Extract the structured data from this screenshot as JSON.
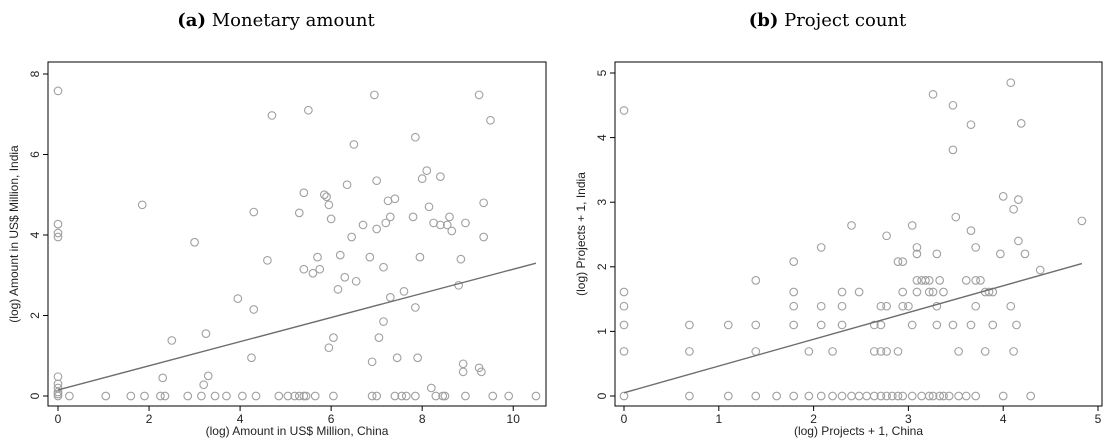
{
  "chart_data": [
    {
      "type": "scatter",
      "panel_label": "(a)",
      "title": "Monetary amount",
      "xlabel": "(log) Amount in US$ Million, China",
      "ylabel": "(log) Amount in US$ Million, India",
      "xlim": [
        0,
        10.5
      ],
      "ylim": [
        0,
        8
      ],
      "xticks": [
        0,
        2,
        4,
        6,
        8,
        10
      ],
      "yticks": [
        0,
        2,
        4,
        6,
        8
      ],
      "grid": false,
      "point_color": "#a0a0a0",
      "line_color": "#6e6e6e",
      "fit_line": {
        "x": [
          0,
          10.5
        ],
        "y": [
          0.15,
          3.3
        ]
      },
      "points": [
        [
          0,
          7.58
        ],
        [
          0,
          4.27
        ],
        [
          0,
          4.05
        ],
        [
          0,
          3.95
        ],
        [
          0,
          0.48
        ],
        [
          0,
          0.3
        ],
        [
          0,
          0.2
        ],
        [
          0,
          0.1
        ],
        [
          0,
          0.05
        ],
        [
          0,
          0
        ],
        [
          0.25,
          0
        ],
        [
          1.05,
          0
        ],
        [
          1.6,
          0
        ],
        [
          1.9,
          0
        ],
        [
          2.3,
          0.45
        ],
        [
          2.25,
          0
        ],
        [
          2.5,
          1.38
        ],
        [
          2.35,
          0
        ],
        [
          2.85,
          0
        ],
        [
          1.85,
          4.75
        ],
        [
          3.0,
          3.82
        ],
        [
          3.2,
          0.28
        ],
        [
          3.3,
          0.5
        ],
        [
          3.25,
          1.55
        ],
        [
          3.15,
          0
        ],
        [
          3.45,
          0
        ],
        [
          3.7,
          0
        ],
        [
          3.95,
          2.42
        ],
        [
          4.05,
          0
        ],
        [
          4.25,
          0.95
        ],
        [
          4.3,
          2.15
        ],
        [
          4.3,
          4.57
        ],
        [
          4.35,
          0
        ],
        [
          4.6,
          3.37
        ],
        [
          4.7,
          6.97
        ],
        [
          4.85,
          0
        ],
        [
          5.05,
          0
        ],
        [
          5.2,
          0
        ],
        [
          5.3,
          4.55
        ],
        [
          5.4,
          5.05
        ],
        [
          5.4,
          3.15
        ],
        [
          5.45,
          0
        ],
        [
          5.5,
          7.1
        ],
        [
          5.6,
          3.05
        ],
        [
          5.65,
          0
        ],
        [
          5.7,
          3.45
        ],
        [
          5.75,
          3.15
        ],
        [
          5.85,
          5.0
        ],
        [
          5.9,
          4.95
        ],
        [
          5.95,
          1.2
        ],
        [
          5.95,
          4.75
        ],
        [
          6.0,
          4.4
        ],
        [
          6.05,
          1.45
        ],
        [
          6.05,
          0
        ],
        [
          6.15,
          2.65
        ],
        [
          6.2,
          3.5
        ],
        [
          6.3,
          2.95
        ],
        [
          6.35,
          5.25
        ],
        [
          6.45,
          3.95
        ],
        [
          6.5,
          6.25
        ],
        [
          6.55,
          2.85
        ],
        [
          6.7,
          4.25
        ],
        [
          6.85,
          3.45
        ],
        [
          6.9,
          0.85
        ],
        [
          6.95,
          7.48
        ],
        [
          7.0,
          5.35
        ],
        [
          7.0,
          4.15
        ],
        [
          7.05,
          1.45
        ],
        [
          7.15,
          1.85
        ],
        [
          7.15,
          3.2
        ],
        [
          7.2,
          4.3
        ],
        [
          7.25,
          4.85
        ],
        [
          7.3,
          4.45
        ],
        [
          7.3,
          2.45
        ],
        [
          7.4,
          4.9
        ],
        [
          7.45,
          0.95
        ],
        [
          7.55,
          0
        ],
        [
          7.6,
          2.6
        ],
        [
          7.65,
          0
        ],
        [
          7.8,
          4.45
        ],
        [
          7.85,
          6.43
        ],
        [
          7.85,
          2.2
        ],
        [
          7.9,
          0.95
        ],
        [
          7.95,
          3.45
        ],
        [
          8.0,
          5.4
        ],
        [
          8.1,
          5.6
        ],
        [
          8.15,
          4.7
        ],
        [
          8.2,
          0.2
        ],
        [
          8.25,
          4.3
        ],
        [
          8.3,
          0
        ],
        [
          8.4,
          5.45
        ],
        [
          8.4,
          4.25
        ],
        [
          8.45,
          0
        ],
        [
          8.55,
          4.25
        ],
        [
          8.6,
          4.45
        ],
        [
          8.65,
          4.1
        ],
        [
          8.8,
          2.75
        ],
        [
          8.85,
          3.4
        ],
        [
          8.9,
          0.8
        ],
        [
          8.9,
          0.6
        ],
        [
          8.95,
          4.3
        ],
        [
          8.95,
          0
        ],
        [
          9.25,
          7.48
        ],
        [
          9.25,
          0.7
        ],
        [
          9.3,
          0.6
        ],
        [
          9.35,
          4.8
        ],
        [
          9.35,
          3.95
        ],
        [
          9.5,
          6.85
        ],
        [
          9.55,
          0
        ],
        [
          9.9,
          0
        ],
        [
          10.5,
          0
        ],
        [
          5.3,
          0
        ],
        [
          5.4,
          0
        ],
        [
          6.9,
          0
        ],
        [
          7.0,
          0
        ],
        [
          7.4,
          0
        ],
        [
          7.85,
          0
        ],
        [
          8.5,
          0
        ]
      ]
    },
    {
      "type": "scatter",
      "panel_label": "(b)",
      "title": "Project count",
      "xlabel": "(log) Projects + 1, China",
      "ylabel": "(log) Projects + 1, India",
      "xlim": [
        0,
        5
      ],
      "ylim": [
        0,
        5
      ],
      "xticks": [
        0,
        1,
        2,
        3,
        4,
        5
      ],
      "yticks": [
        0,
        1,
        2,
        3,
        4,
        5
      ],
      "grid": false,
      "point_color": "#a0a0a0",
      "line_color": "#6e6e6e",
      "fit_line": {
        "x": [
          0,
          4.83
        ],
        "y": [
          0.05,
          2.05
        ]
      },
      "points": [
        [
          0,
          4.42
        ],
        [
          0,
          1.61
        ],
        [
          0,
          1.39
        ],
        [
          0,
          1.1
        ],
        [
          0,
          0.69
        ],
        [
          0,
          0
        ],
        [
          0.69,
          1.1
        ],
        [
          0.69,
          0.69
        ],
        [
          0.69,
          0
        ],
        [
          1.1,
          1.1
        ],
        [
          1.1,
          0
        ],
        [
          1.39,
          1.79
        ],
        [
          1.39,
          1.1
        ],
        [
          1.39,
          0.69
        ],
        [
          1.39,
          0
        ],
        [
          1.61,
          0
        ],
        [
          1.79,
          2.08
        ],
        [
          1.79,
          1.61
        ],
        [
          1.79,
          1.39
        ],
        [
          1.79,
          1.1
        ],
        [
          1.79,
          0
        ],
        [
          1.95,
          0.69
        ],
        [
          1.95,
          0
        ],
        [
          2.08,
          2.3
        ],
        [
          2.08,
          1.39
        ],
        [
          2.08,
          1.1
        ],
        [
          2.08,
          0
        ],
        [
          2.2,
          0.69
        ],
        [
          2.2,
          0
        ],
        [
          2.3,
          1.61
        ],
        [
          2.3,
          1.39
        ],
        [
          2.3,
          1.1
        ],
        [
          2.3,
          0
        ],
        [
          2.4,
          2.64
        ],
        [
          2.4,
          0
        ],
        [
          2.48,
          1.61
        ],
        [
          2.48,
          0
        ],
        [
          2.56,
          0
        ],
        [
          2.64,
          0.69
        ],
        [
          2.64,
          1.1
        ],
        [
          2.64,
          0
        ],
        [
          2.71,
          1.39
        ],
        [
          2.71,
          1.1
        ],
        [
          2.71,
          0.69
        ],
        [
          2.71,
          0
        ],
        [
          2.77,
          2.48
        ],
        [
          2.77,
          1.39
        ],
        [
          2.77,
          0.69
        ],
        [
          2.77,
          0
        ],
        [
          2.83,
          0
        ],
        [
          2.89,
          2.08
        ],
        [
          2.89,
          0.69
        ],
        [
          2.89,
          0
        ],
        [
          2.94,
          2.08
        ],
        [
          2.94,
          1.61
        ],
        [
          2.94,
          1.39
        ],
        [
          2.94,
          0
        ],
        [
          3.0,
          1.39
        ],
        [
          3.04,
          2.64
        ],
        [
          3.04,
          1.1
        ],
        [
          3.04,
          0
        ],
        [
          3.09,
          2.3
        ],
        [
          3.09,
          2.2
        ],
        [
          3.09,
          1.79
        ],
        [
          3.09,
          1.61
        ],
        [
          3.14,
          1.79
        ],
        [
          3.14,
          0
        ],
        [
          3.18,
          1.79
        ],
        [
          3.22,
          1.79
        ],
        [
          3.22,
          1.61
        ],
        [
          3.22,
          0
        ],
        [
          3.26,
          4.67
        ],
        [
          3.26,
          1.61
        ],
        [
          3.26,
          0
        ],
        [
          3.3,
          2.2
        ],
        [
          3.3,
          1.39
        ],
        [
          3.3,
          1.1
        ],
        [
          3.33,
          1.79
        ],
        [
          3.33,
          0
        ],
        [
          3.37,
          1.61
        ],
        [
          3.37,
          0
        ],
        [
          3.43,
          0
        ],
        [
          3.47,
          4.5
        ],
        [
          3.47,
          3.81
        ],
        [
          3.47,
          1.1
        ],
        [
          3.5,
          2.77
        ],
        [
          3.53,
          0.69
        ],
        [
          3.53,
          0
        ],
        [
          3.61,
          1.79
        ],
        [
          3.61,
          0
        ],
        [
          3.66,
          4.2
        ],
        [
          3.66,
          2.56
        ],
        [
          3.66,
          1.1
        ],
        [
          3.71,
          2.3
        ],
        [
          3.71,
          1.79
        ],
        [
          3.71,
          1.39
        ],
        [
          3.71,
          0
        ],
        [
          3.76,
          1.79
        ],
        [
          3.81,
          1.61
        ],
        [
          3.81,
          0.69
        ],
        [
          3.85,
          1.61
        ],
        [
          3.89,
          1.61
        ],
        [
          3.89,
          1.1
        ],
        [
          3.97,
          2.2
        ],
        [
          4.0,
          3.09
        ],
        [
          4.0,
          0
        ],
        [
          4.08,
          4.85
        ],
        [
          4.08,
          1.39
        ],
        [
          4.11,
          2.89
        ],
        [
          4.11,
          0.69
        ],
        [
          4.14,
          1.1
        ],
        [
          4.16,
          2.4
        ],
        [
          4.16,
          3.04
        ],
        [
          4.19,
          4.22
        ],
        [
          4.23,
          2.2
        ],
        [
          4.29,
          0
        ],
        [
          4.39,
          1.95
        ],
        [
          4.83,
          2.71
        ]
      ]
    }
  ]
}
